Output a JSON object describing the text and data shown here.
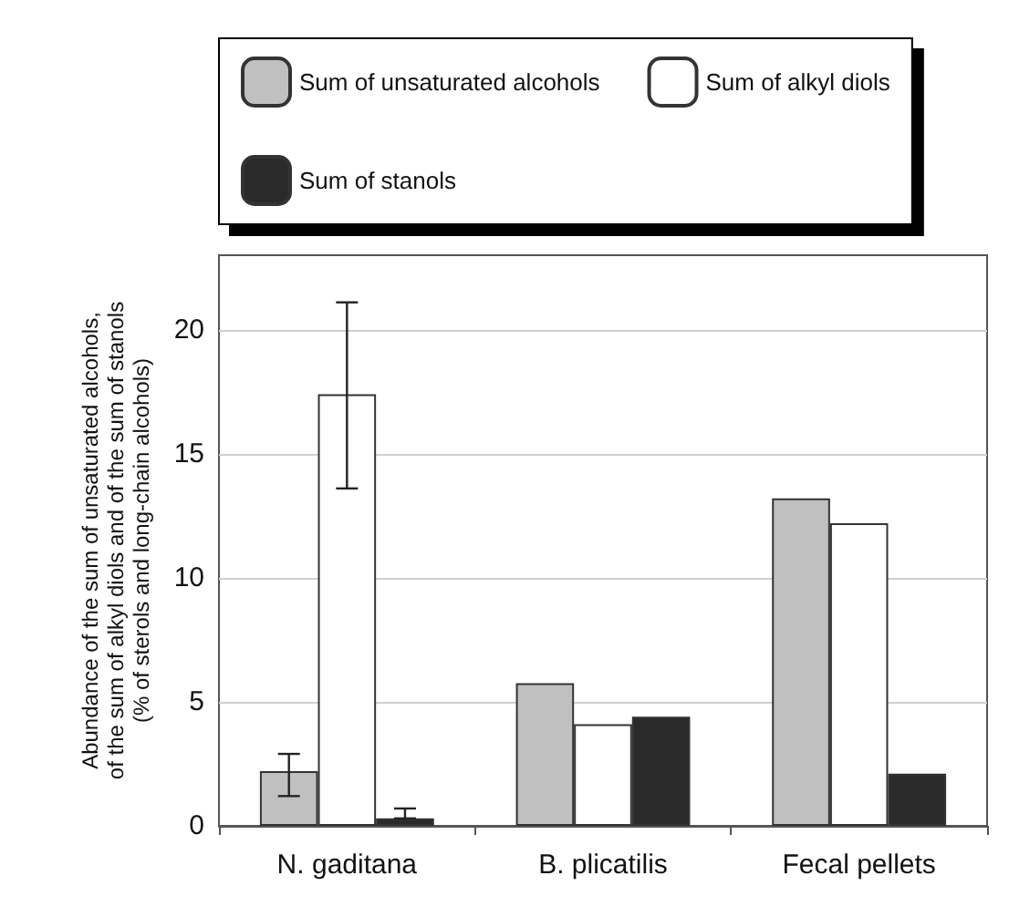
{
  "chart_data": {
    "type": "bar",
    "ylabel": "Abundance of the sum of unsaturated alcohols,\nof the sum of alkyl diols and of the sum of stanols\n(% of sterols and long-chain alcohols)",
    "categories": [
      "N. gaditana",
      "B. plicatilis",
      "Fecal pellets"
    ],
    "series": [
      {
        "name": "Sum of unsaturated alcohols",
        "color": "#c0c0c0",
        "values": [
          2.2,
          5.75,
          13.2
        ],
        "errors": [
          [
            1.2,
            2.9
          ],
          null,
          null
        ]
      },
      {
        "name": "Sum of alkyl diols",
        "color": "#ffffff",
        "values": [
          17.4,
          4.1,
          12.2
        ],
        "errors": [
          [
            13.6,
            21.1
          ],
          null,
          null
        ]
      },
      {
        "name": "Sum of stanols",
        "color": "#2a2a2a",
        "values": [
          0.3,
          4.4,
          2.1
        ],
        "errors": [
          [
            0.3,
            0.7
          ],
          null,
          null
        ]
      }
    ],
    "ylim": [
      0,
      23
    ],
    "yticks": [
      0,
      5,
      10,
      15,
      20
    ],
    "grid": "y",
    "legend": "top"
  }
}
